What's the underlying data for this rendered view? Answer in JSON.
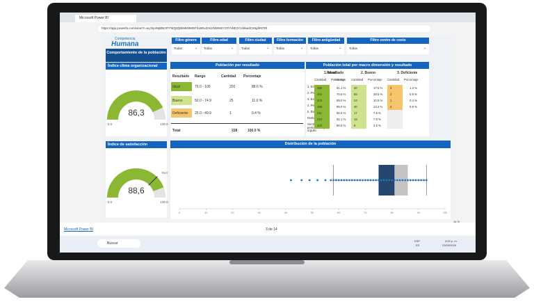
{
  "browser": {
    "tab": "Microsoft Power BI",
    "url": "https://app.powerbi.com/view?r=eyJrIjoiNjBlNzFlYWQtZjBkMi00MDFlLWExZmUtNWM2YzFlYWE3YzdiIiwidCI6IjdhNTRl"
  },
  "logo": {
    "line1": "Competencia",
    "line2": "Humana"
  },
  "title": "Comportamiento de la población",
  "filters": [
    {
      "label": "Filtro género",
      "value": "Todas"
    },
    {
      "label": "Filtro edad",
      "value": "Todas"
    },
    {
      "label": "Filtro ciudad",
      "value": "Todas"
    },
    {
      "label": "Filtro formación",
      "value": "Todas"
    },
    {
      "label": "Filtro antigüedad",
      "value": "Todas"
    },
    {
      "label": "Filtro centro de costo",
      "value": "Todas"
    }
  ],
  "gauges": [
    {
      "title": "Índice clima organizacional",
      "value": {
        "value": 86.3,
        "label": "86,3"
      },
      "min": {
        "value": 0,
        "label": "0.0"
      },
      "max": {
        "value": 100,
        "label": "100.0"
      }
    },
    {
      "title": "Índice de satisfacción",
      "value": {
        "value": 88.6,
        "label": "88,6"
      },
      "min": {
        "value": 0,
        "label": "0.0"
      },
      "max": {
        "value": 100,
        "label": "100.0"
      },
      "target": {
        "value": 75,
        "label": "75,0"
      }
    }
  ],
  "result_table": {
    "title": "Población por resultado",
    "headers": [
      "Resultado",
      "Rango",
      "Cantidad",
      "Porcentaje"
    ],
    "rows": [
      [
        "Ideal",
        "75.0 - 100",
        "202",
        "88.6 %"
      ],
      [
        "Bueno",
        "50.0 - 74.9",
        "25",
        "11.0 %"
      ],
      [
        "Deficiente",
        "25.0 - 49.9",
        "1",
        "0.4 %"
      ]
    ],
    "total": [
      "Total",
      "228",
      "100.0 %"
    ]
  },
  "matrix": {
    "title": "Población total por macro dimensión y resultado",
    "corner": "Resultado",
    "row_header": "Macros",
    "groups": [
      "1. Ideal",
      "2. Bueno",
      "3. Deficiente"
    ],
    "sub": [
      "Cantidad",
      "Porcentaje"
    ],
    "rows": [
      [
        "1. Estrategia",
        "185",
        "81.1 %",
        "40",
        "17.5 %",
        "3",
        "1.3 %"
      ],
      [
        "2. Procesos",
        "161",
        "70.6 %",
        "65",
        "28.5 %",
        "2",
        "0.9 %"
      ],
      [
        "3. Estructura",
        "203",
        "89.0 %",
        "24",
        "10.5 %",
        "1",
        "0.4 %"
      ],
      [
        "4. Personas",
        "196",
        "86.0 %",
        "30",
        "13.2 %",
        "2",
        "0.9 %"
      ],
      [
        "5. Bienestar",
        "211",
        "92.5 %",
        "17",
        "7.5 %",
        null,
        null
      ],
      [
        "Motivación",
        "210",
        "92.1 %",
        "18",
        "7.9 %",
        null,
        null
      ],
      [
        "Sentido de pertenencia y orgullo",
        "220",
        "96.5 %",
        "8",
        "3.5 %",
        null,
        null
      ]
    ]
  },
  "distribution": {
    "title": "Distribución de la población",
    "xlim": [
      0,
      100
    ],
    "xticks": [
      0,
      10,
      20,
      30,
      40,
      50,
      60,
      70,
      80,
      90,
      100
    ],
    "points": [
      42,
      46,
      49,
      52,
      55,
      57,
      58,
      59,
      60,
      61,
      62,
      63,
      64,
      65,
      66,
      67,
      68,
      69,
      70,
      71,
      72,
      73,
      74,
      75,
      76,
      77,
      78,
      79,
      80,
      81,
      82,
      83,
      84,
      85,
      86,
      87,
      88,
      89,
      90,
      91,
      92,
      93
    ],
    "box": {
      "min": 58,
      "q1": 75,
      "median": 81,
      "q3": 86,
      "max": 93
    }
  },
  "footer": {
    "brand": "Microsoft Power BI",
    "page": "3 de 14",
    "zoom": "14 %"
  },
  "taskbar": {
    "search": "Buscar",
    "lang1": "ESP",
    "lang2": "ES",
    "time": "3:02 p. m.",
    "date": "23/03/2026"
  }
}
